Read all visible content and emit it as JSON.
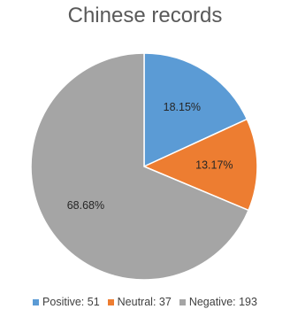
{
  "chart_data": {
    "type": "pie",
    "title": "Chinese records",
    "slices": [
      {
        "label": "Positive",
        "value": 51,
        "percent_label": "18.15%",
        "color": "#5b9bd5"
      },
      {
        "label": "Neutral",
        "value": 37,
        "percent_label": "13.17%",
        "color": "#ed7d31"
      },
      {
        "label": "Negative",
        "value": 193,
        "percent_label": "68.68%",
        "color": "#a5a5a5"
      }
    ],
    "legend": {
      "placement": "bottom",
      "entries": [
        "Positive: 51",
        "Neutral: 37",
        "Negative: 193"
      ]
    }
  }
}
